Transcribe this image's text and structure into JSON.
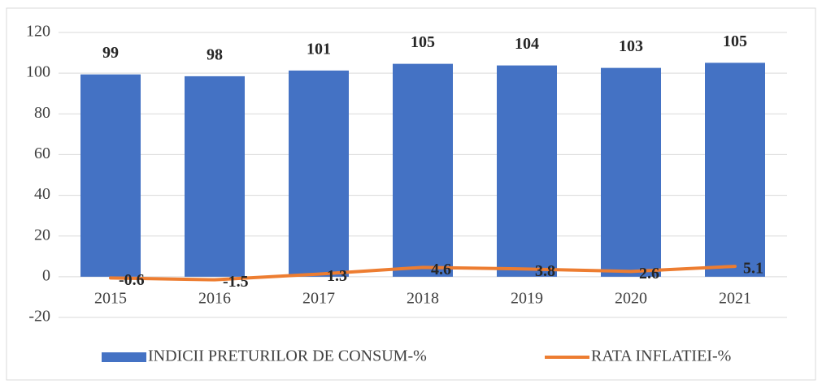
{
  "chart_data": {
    "type": "bar",
    "categories": [
      "2015",
      "2016",
      "2017",
      "2018",
      "2019",
      "2020",
      "2021"
    ],
    "series": [
      {
        "name": "INDICII PRETURILOR DE CONSUM-%",
        "type": "bar",
        "color": "#4472c4",
        "values": [
          99.4,
          98.5,
          101.3,
          104.6,
          103.8,
          102.6,
          105.1
        ],
        "value_labels": [
          "99",
          "98",
          "101",
          "105",
          "104",
          "103",
          "105"
        ]
      },
      {
        "name": "RATA INFLATIEI-%",
        "type": "line",
        "color": "#ed7d31",
        "values": [
          -0.6,
          -1.5,
          1.3,
          4.6,
          3.8,
          2.6,
          5.1
        ]
      }
    ],
    "ylim": [
      -20,
      120
    ],
    "yticks": [
      -20,
      0,
      20,
      40,
      60,
      80,
      100,
      120
    ],
    "grid": true,
    "legend": "bottom"
  }
}
